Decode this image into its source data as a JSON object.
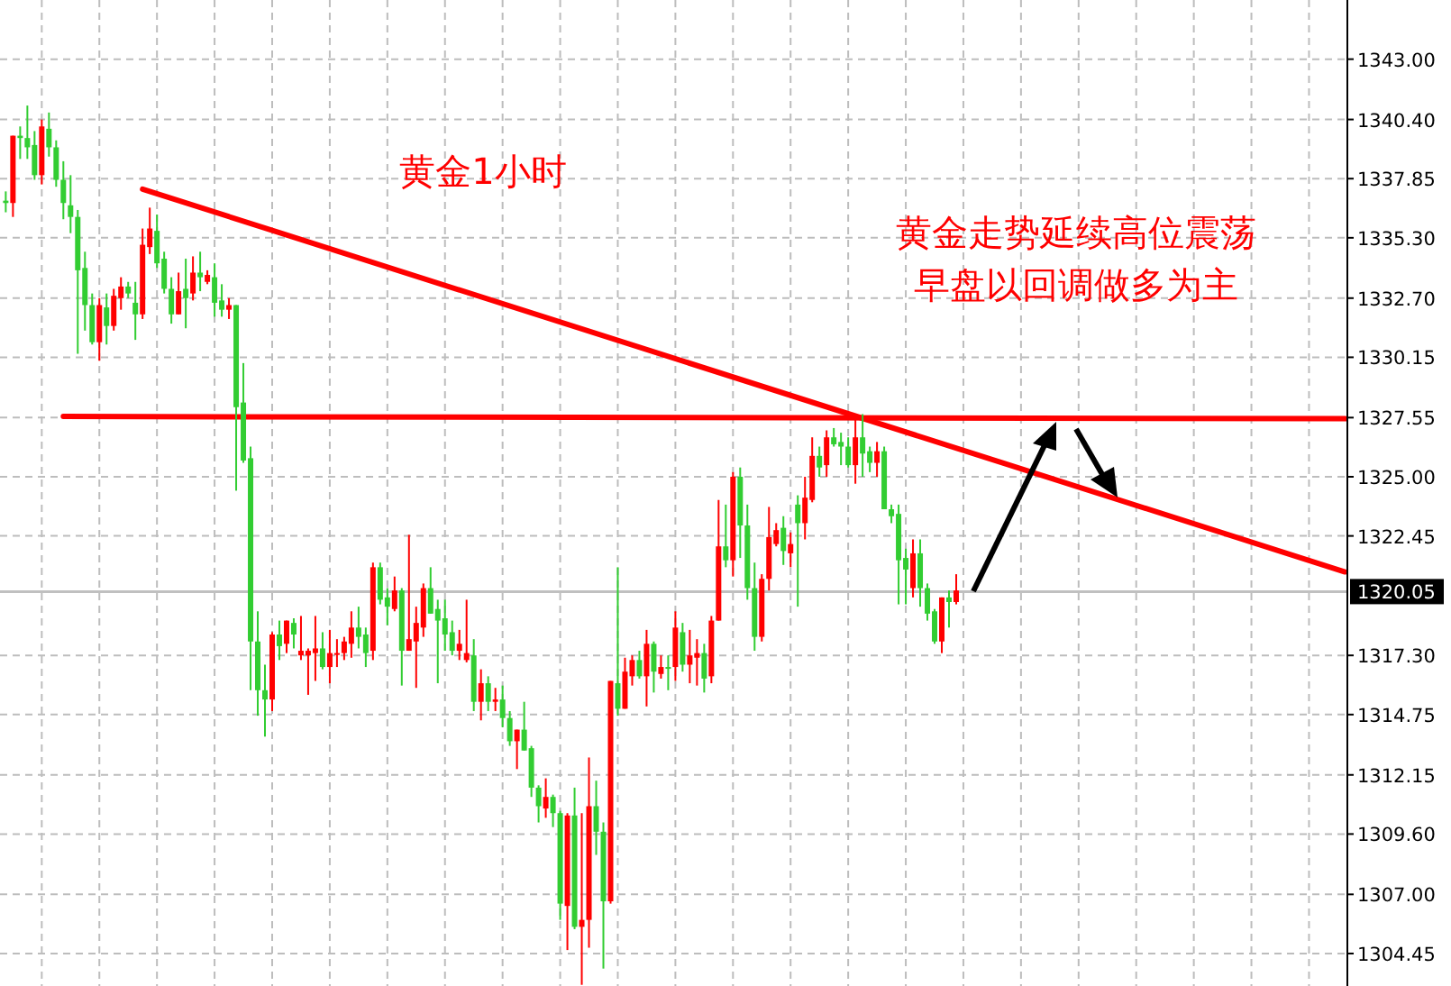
{
  "chart_data": {
    "type": "candlestick",
    "title": "黄金1小时",
    "annotations": [
      "黄金走势延续高位震荡",
      "早盘以回调做多为主"
    ],
    "categories": [
      null,
      null,
      null,
      null,
      null,
      null,
      null,
      null,
      null,
      null,
      null,
      null,
      null,
      null,
      null,
      null,
      null,
      null,
      null,
      null,
      null,
      null,
      null,
      null,
      null,
      null,
      null,
      null,
      null,
      null,
      null,
      null,
      null,
      null,
      null,
      null,
      null,
      null,
      null,
      null,
      null,
      null,
      null,
      null,
      null,
      null,
      null,
      null,
      null,
      null,
      null,
      null,
      null,
      null,
      null,
      null,
      null,
      null,
      null,
      null,
      null,
      null,
      null,
      null,
      null,
      null,
      null,
      null,
      null,
      null,
      null,
      null,
      null,
      null,
      null,
      null,
      null,
      null,
      null,
      null,
      null,
      null,
      null,
      null,
      null,
      null,
      null,
      null,
      null,
      null,
      null,
      null,
      null,
      null,
      null,
      null,
      null,
      null,
      null,
      null,
      null,
      null,
      null,
      null,
      null,
      null,
      null,
      null,
      null,
      null,
      null,
      null,
      null,
      null,
      null,
      null,
      null,
      null,
      null,
      null,
      null,
      null,
      null,
      null,
      null,
      null,
      null,
      null,
      null,
      null,
      null,
      null,
      null,
      null,
      null,
      null,
      null,
      null,
      null,
      null,
      null,
      null,
      null,
      null,
      null,
      null,
      null,
      null,
      null,
      null,
      null,
      null,
      null,
      null,
      null,
      null,
      null,
      null,
      null,
      null,
      null,
      null,
      null,
      null,
      null,
      null,
      null,
      null,
      null,
      null,
      null,
      null,
      null,
      null,
      null,
      null,
      null,
      null,
      null,
      null,
      null,
      null,
      null,
      null,
      null,
      null,
      null
    ],
    "colors": [
      "#32cd32",
      "#ff0000",
      "#32cd32",
      "#32cd32",
      "#32cd32",
      "#ff0000",
      "#32cd32",
      "#32cd32",
      "#32cd32",
      "#32cd32",
      "#32cd32",
      "#32cd32",
      "#32cd32",
      "#ff0000",
      "#32cd32",
      "#ff0000",
      "#ff0000",
      "#32cd32",
      "#32cd32",
      "#ff0000",
      "#ff0000",
      "#32cd32",
      "#32cd32",
      "#32cd32",
      "#ff0000",
      "#32cd32",
      "#ff0000",
      "#32cd32",
      "#ff0000",
      "#32cd32",
      "#32cd32",
      "#ff0000",
      "#32cd32",
      "#32cd32",
      "#32cd32",
      "#32cd32",
      "#32cd32",
      "#ff0000",
      "#32cd32",
      "#ff0000",
      "#32cd32",
      "#ff0000",
      "#ff0000",
      "#ff0000",
      "#32cd32",
      "#ff0000",
      "#ff0000",
      "#ff0000",
      "#ff0000",
      "#32cd32",
      "#32cd32",
      "#ff0000",
      "#32cd32",
      "#32cd32",
      "#ff0000",
      "#32cd32",
      "#ff0000",
      "#ff0000",
      "#ff0000",
      "#32cd32",
      "#32cd32",
      "#32cd32",
      "#32cd32",
      "#ff0000",
      "#ff0000",
      "#32cd32",
      "#ff0000",
      "#32cd32",
      "#ff0000",
      "#32cd32",
      "#32cd32",
      "#ff0000",
      "#32cd32",
      "#32cd32",
      "#32cd32",
      "#ff0000",
      "#32cd32",
      "#32cd32",
      "#ff0000",
      "#32cd32",
      "#ff0000",
      "#ff0000",
      "#32cd32",
      "#32cd32",
      "#ff0000",
      "#32cd32",
      "#ff0000",
      "#ff0000",
      "#32cd32",
      "#ff0000",
      "#32cd32",
      "#ff0000",
      "#32cd32",
      "#ff0000",
      "#32cd32",
      "#ff0000",
      "#ff0000",
      "#32cd32",
      "#ff0000",
      "#ff0000",
      "#32cd32",
      "#ff0000",
      "#32cd32",
      "#32cd32",
      "#32cd32",
      "#ff0000",
      "#ff0000",
      "#ff0000",
      "#32cd32",
      "#ff0000",
      "#32cd32",
      "#ff0000",
      "#ff0000",
      "#32cd32",
      "#ff0000",
      "#32cd32",
      "#32cd32",
      "#32cd32",
      "#ff0000",
      "#32cd32",
      "#32cd32",
      "#ff0000",
      "#32cd32",
      "#32cd32",
      "#32cd32",
      "#32cd32",
      "#ff0000",
      "#32cd32",
      "#32cd32",
      "#32cd32",
      "#ff0000",
      "#32cd32",
      "#ff0000",
      null,
      null,
      null,
      null,
      null,
      null,
      null,
      null,
      null,
      null,
      null,
      null,
      null,
      null,
      null,
      null,
      null,
      null,
      null,
      null,
      null,
      null,
      null,
      null,
      null,
      null,
      null,
      null,
      null,
      null,
      null,
      null,
      null,
      null,
      null,
      null,
      null,
      null,
      null,
      null,
      null,
      null,
      null,
      null,
      null,
      null,
      null,
      null,
      null,
      null,
      null,
      null,
      null,
      null
    ],
    "ohlc": [
      [
        1336.9,
        1337.3,
        1336.4,
        1336.8
      ],
      [
        1336.8,
        1339.7,
        1336.2,
        1339.7
      ],
      [
        1339.7,
        1340.1,
        1338.7,
        1339.6
      ],
      [
        1339.6,
        1341.0,
        1338.7,
        1339.2
      ],
      [
        1339.3,
        1339.9,
        1337.8,
        1338.0
      ],
      [
        1338.0,
        1340.4,
        1337.6,
        1340.1
      ],
      [
        1340.0,
        1340.7,
        1338.8,
        1339.2
      ],
      [
        1339.2,
        1339.5,
        1337.5,
        1337.8
      ],
      [
        1337.8,
        1338.6,
        1336.1,
        1336.8
      ],
      [
        1336.7,
        1338.0,
        1335.5,
        1336.2
      ],
      [
        1336.2,
        1336.5,
        1330.3,
        1333.9
      ],
      [
        1334.0,
        1334.7,
        1331.3,
        1332.4
      ],
      [
        1332.4,
        1332.9,
        1330.7,
        1330.8
      ],
      [
        1330.8,
        1332.7,
        1330.0,
        1332.4
      ],
      [
        1332.3,
        1332.9,
        1330.7,
        1331.5
      ],
      [
        1331.5,
        1333.1,
        1331.3,
        1332.8
      ],
      [
        1332.7,
        1333.6,
        1332.2,
        1333.2
      ],
      [
        1333.2,
        1333.4,
        1332.7,
        1332.9
      ],
      [
        1332.5,
        1333.4,
        1330.9,
        1332.0
      ],
      [
        1332.0,
        1335.7,
        1331.8,
        1335.0
      ],
      [
        1334.9,
        1336.6,
        1334.6,
        1335.7
      ],
      [
        1335.6,
        1336.3,
        1334.0,
        1334.2
      ],
      [
        1334.4,
        1334.7,
        1332.9,
        1333.1
      ],
      [
        1333.1,
        1333.6,
        1331.6,
        1332.0
      ],
      [
        1332.0,
        1333.8,
        1332.0,
        1333.0
      ],
      [
        1333.1,
        1334.4,
        1331.4,
        1332.7
      ],
      [
        1332.9,
        1334.5,
        1332.6,
        1333.8
      ],
      [
        1333.8,
        1334.7,
        1333.0,
        1333.6
      ],
      [
        1333.4,
        1333.9,
        1333.3,
        1333.7
      ],
      [
        1333.6,
        1334.2,
        1331.9,
        1332.5
      ],
      [
        1332.6,
        1333.3,
        1331.9,
        1332.2
      ],
      [
        1332.2,
        1332.7,
        1331.8,
        1332.4
      ],
      [
        1332.4,
        1332.4,
        1324.4,
        1328.0
      ],
      [
        1328.2,
        1329.9,
        1325.6,
        1325.7
      ],
      [
        1325.8,
        1326.3,
        1315.8,
        1317.9
      ],
      [
        1317.9,
        1319.2,
        1314.7,
        1315.8
      ],
      [
        1315.8,
        1316.9,
        1313.8,
        1315.4
      ],
      [
        1315.4,
        1318.3,
        1314.9,
        1318.2
      ],
      [
        1318.2,
        1318.8,
        1317.1,
        1317.7
      ],
      [
        1317.8,
        1318.8,
        1317.4,
        1318.8
      ],
      [
        1318.7,
        1318.9,
        1317.6,
        1318.2
      ],
      [
        1317.3,
        1319.0,
        1317.1,
        1317.5
      ],
      [
        1317.3,
        1317.6,
        1315.6,
        1317.5
      ],
      [
        1317.4,
        1319.0,
        1316.2,
        1317.6
      ],
      [
        1317.6,
        1318.3,
        1316.7,
        1316.8
      ],
      [
        1316.8,
        1318.4,
        1316.1,
        1317.4
      ],
      [
        1317.4,
        1318.0,
        1316.8,
        1317.4
      ],
      [
        1317.4,
        1318.1,
        1317.1,
        1317.9
      ],
      [
        1317.8,
        1319.2,
        1317.2,
        1318.5
      ],
      [
        1318.5,
        1319.4,
        1317.6,
        1318.1
      ],
      [
        1318.2,
        1318.5,
        1316.8,
        1317.4
      ],
      [
        1317.5,
        1321.3,
        1317.1,
        1321.1
      ],
      [
        1321.1,
        1321.3,
        1319.5,
        1319.7
      ],
      [
        1319.8,
        1320.2,
        1318.6,
        1319.4
      ],
      [
        1319.3,
        1320.7,
        1319.2,
        1320.1
      ],
      [
        1320.1,
        1320.2,
        1316.0,
        1317.5
      ],
      [
        1317.5,
        1322.5,
        1317.5,
        1318.0
      ],
      [
        1317.9,
        1319.4,
        1315.9,
        1318.7
      ],
      [
        1318.5,
        1320.4,
        1318.1,
        1320.2
      ],
      [
        1320.2,
        1321.1,
        1319.1,
        1319.1
      ],
      [
        1319.3,
        1319.7,
        1316.1,
        1318.8
      ],
      [
        1318.9,
        1319.7,
        1317.5,
        1318.2
      ],
      [
        1318.3,
        1318.8,
        1317.3,
        1317.5
      ],
      [
        1317.5,
        1318.4,
        1317.1,
        1317.8
      ],
      [
        1317.1,
        1319.7,
        1317.0,
        1317.4
      ],
      [
        1317.3,
        1318.0,
        1314.9,
        1315.3
      ],
      [
        1315.3,
        1316.7,
        1314.5,
        1316.1
      ],
      [
        1316.1,
        1316.4,
        1314.9,
        1315.3
      ],
      [
        1315.3,
        1315.9,
        1314.9,
        1315.4
      ],
      [
        1315.4,
        1316.0,
        1314.2,
        1314.6
      ],
      [
        1314.6,
        1314.9,
        1313.4,
        1313.6
      ],
      [
        1313.6,
        1314.1,
        1312.4,
        1314.1
      ],
      [
        1314.1,
        1315.3,
        1313.2,
        1313.2
      ],
      [
        1313.3,
        1313.4,
        1311.2,
        1311.6
      ],
      [
        1311.6,
        1311.7,
        1310.1,
        1310.8
      ],
      [
        1310.7,
        1312.0,
        1310.3,
        1311.2
      ],
      [
        1311.2,
        1311.3,
        1309.9,
        1310.5
      ],
      [
        1310.5,
        1310.6,
        1305.9,
        1306.6
      ],
      [
        1306.5,
        1310.5,
        1304.6,
        1310.4
      ],
      [
        1310.4,
        1311.6,
        1305.5,
        1305.6
      ],
      [
        1305.6,
        1310.5,
        1303.1,
        1305.9
      ],
      [
        1305.9,
        1312.9,
        1304.7,
        1310.8
      ],
      [
        1310.8,
        1311.9,
        1308.7,
        1309.7
      ],
      [
        1309.7,
        1310.1,
        1303.8,
        1306.7
      ],
      [
        1306.7,
        1316.2,
        1306.6,
        1316.2
      ],
      [
        1316.1,
        1321.1,
        1314.7,
        1315.0
      ],
      [
        1315.0,
        1317.2,
        1315.0,
        1316.6
      ],
      [
        1316.4,
        1317.3,
        1316.0,
        1317.1
      ],
      [
        1317.1,
        1317.5,
        1316.3,
        1316.4
      ],
      [
        1316.4,
        1318.4,
        1315.1,
        1317.8
      ],
      [
        1317.8,
        1317.9,
        1315.7,
        1316.6
      ],
      [
        1316.5,
        1317.3,
        1316.3,
        1316.8
      ],
      [
        1316.8,
        1317.3,
        1315.8,
        1316.8
      ],
      [
        1316.8,
        1319.2,
        1316.2,
        1318.5
      ],
      [
        1318.3,
        1318.7,
        1316.6,
        1316.9
      ],
      [
        1316.9,
        1318.4,
        1316.1,
        1317.3
      ],
      [
        1317.2,
        1318.0,
        1316.0,
        1317.4
      ],
      [
        1317.4,
        1317.8,
        1315.7,
        1316.3
      ],
      [
        1316.4,
        1319.0,
        1316.1,
        1318.8
      ],
      [
        1318.8,
        1324.0,
        1318.8,
        1322.0
      ],
      [
        1322.0,
        1323.8,
        1321.1,
        1321.4
      ],
      [
        1321.4,
        1325.2,
        1320.7,
        1325.0
      ],
      [
        1325.0,
        1325.4,
        1321.5,
        1322.9
      ],
      [
        1322.9,
        1323.8,
        1319.7,
        1320.2
      ],
      [
        1320.2,
        1321.3,
        1317.5,
        1318.1
      ],
      [
        1318.1,
        1320.8,
        1317.9,
        1320.6
      ],
      [
        1320.6,
        1323.7,
        1320.1,
        1322.4
      ],
      [
        1322.1,
        1323.0,
        1322.0,
        1322.7
      ],
      [
        1322.8,
        1323.3,
        1321.2,
        1321.8
      ],
      [
        1321.7,
        1322.6,
        1321.1,
        1322.1
      ],
      [
        1323.8,
        1324.2,
        1319.4,
        1323.0
      ],
      [
        1323.0,
        1325.0,
        1322.3,
        1324.1
      ],
      [
        1324.0,
        1326.7,
        1323.9,
        1325.9
      ],
      [
        1325.9,
        1326.3,
        1325.0,
        1325.4
      ],
      [
        1325.5,
        1327.0,
        1325.0,
        1326.7
      ],
      [
        1326.7,
        1327.1,
        1326.3,
        1326.4
      ],
      [
        1326.5,
        1326.9,
        1325.5,
        1326.3
      ],
      [
        1326.3,
        1326.7,
        1325.4,
        1325.5
      ],
      [
        1325.5,
        1327.6,
        1324.7,
        1326.7
      ],
      [
        1326.7,
        1327.7,
        1325.0,
        1326.0
      ],
      [
        1326.1,
        1326.3,
        1325.2,
        1325.6
      ],
      [
        1325.6,
        1326.5,
        1325.0,
        1326.1
      ],
      [
        1326.1,
        1326.3,
        1323.6,
        1323.6
      ],
      [
        1323.6,
        1323.8,
        1323.0,
        1323.3
      ],
      [
        1323.4,
        1323.8,
        1319.5,
        1321.4
      ],
      [
        1321.5,
        1321.9,
        1319.5,
        1321.0
      ],
      [
        1320.2,
        1322.3,
        1319.8,
        1321.7
      ],
      [
        1321.7,
        1322.3,
        1319.4,
        1320.2
      ],
      [
        1320.2,
        1320.4,
        1318.8,
        1319.1
      ],
      [
        1319.2,
        1319.3,
        1317.8,
        1317.9
      ],
      [
        1317.9,
        1319.8,
        1317.4,
        1319.8
      ],
      [
        1319.8,
        1320.1,
        1318.5,
        1319.6
      ],
      [
        1319.6,
        1320.8,
        1319.5,
        1320.1
      ],
      null,
      null,
      null,
      null,
      null,
      null,
      null,
      null,
      null,
      null,
      null,
      null,
      null,
      null,
      null,
      null,
      null,
      null,
      null,
      null,
      null,
      null,
      null,
      null,
      null,
      null,
      null,
      null,
      null,
      null,
      null,
      null,
      null,
      null,
      null,
      null,
      null,
      null,
      null,
      null,
      null,
      null,
      null,
      null,
      null,
      null,
      null,
      null,
      null,
      null,
      null,
      null,
      null,
      null
    ],
    "series": [
      {
        "type": "line",
        "color": "#ff0000",
        "values": [
          null,
          null,
          null,
          null,
          null,
          null,
          null,
          null,
          null,
          null,
          null,
          null,
          null,
          null,
          null,
          null,
          null,
          null,
          null,
          1337.4,
          null,
          null,
          null,
          null,
          null,
          null,
          null,
          null,
          null,
          null,
          null,
          null,
          null,
          null,
          null,
          null,
          null,
          null,
          null,
          null,
          null,
          null,
          null,
          null,
          null,
          null,
          null,
          null,
          null,
          null,
          null,
          null,
          null,
          null,
          null,
          null,
          null,
          null,
          null,
          null,
          null,
          null,
          null,
          null,
          null,
          null,
          null,
          null,
          null,
          null,
          null,
          null,
          null,
          null,
          null,
          null,
          null,
          null,
          null,
          null,
          null,
          null,
          null,
          null,
          null,
          null,
          null,
          null,
          null,
          null,
          null,
          null,
          null,
          null,
          null,
          null,
          null,
          null,
          null,
          null,
          null,
          null,
          null,
          null,
          null,
          null,
          null,
          null,
          null,
          null,
          null,
          null,
          null,
          null,
          null,
          null,
          null,
          null,
          null,
          null,
          null,
          null,
          null,
          null,
          null,
          null,
          null,
          null,
          null,
          null,
          null,
          null,
          null,
          null,
          null,
          null,
          null,
          null,
          null,
          null,
          null,
          null,
          null,
          null,
          null,
          null,
          null,
          null,
          null,
          null,
          null,
          null,
          null,
          null,
          null,
          null,
          null,
          null,
          null,
          null,
          null,
          null,
          null,
          null,
          null,
          null,
          null,
          null,
          null,
          null,
          null,
          null,
          null,
          null,
          null,
          null,
          null,
          null,
          null,
          null,
          null,
          null,
          null,
          null,
          null,
          null,
          1320.9
        ]
      },
      {
        "type": "line",
        "color": "#ff0000",
        "values": [
          null,
          null,
          null,
          null,
          null,
          null,
          null,
          null,
          1327.6,
          null,
          null,
          null,
          null,
          null,
          null,
          null,
          null,
          null,
          null,
          null,
          null,
          null,
          null,
          null,
          null,
          null,
          null,
          null,
          null,
          null,
          null,
          null,
          null,
          null,
          null,
          null,
          null,
          null,
          null,
          null,
          null,
          null,
          null,
          null,
          null,
          null,
          null,
          null,
          null,
          null,
          null,
          null,
          null,
          null,
          null,
          null,
          null,
          null,
          null,
          null,
          null,
          null,
          null,
          null,
          null,
          null,
          null,
          null,
          null,
          null,
          null,
          null,
          null,
          null,
          null,
          null,
          null,
          null,
          null,
          null,
          null,
          null,
          null,
          null,
          null,
          null,
          null,
          null,
          null,
          null,
          null,
          null,
          null,
          null,
          null,
          null,
          null,
          null,
          null,
          null,
          null,
          null,
          null,
          null,
          null,
          null,
          null,
          null,
          null,
          null,
          null,
          null,
          null,
          null,
          null,
          null,
          null,
          null,
          null,
          null,
          null,
          null,
          null,
          null,
          null,
          null,
          null,
          null,
          null,
          null,
          null,
          null,
          null,
          null,
          null,
          null,
          null,
          null,
          null,
          null,
          null,
          null,
          null,
          null,
          null,
          null,
          null,
          null,
          null,
          null,
          null,
          null,
          null,
          null,
          null,
          null,
          null,
          null,
          null,
          null,
          null,
          null,
          null,
          null,
          null,
          null,
          null,
          null,
          null,
          null,
          null,
          null,
          null,
          null,
          null,
          null,
          null,
          null,
          null,
          null,
          null,
          null,
          null,
          null,
          null,
          null,
          1327.5
        ]
      }
    ],
    "ref_lines": [
      {
        "axis": "y",
        "value": 1320.05,
        "label": "1320.05",
        "color": "#c0c0c0"
      }
    ],
    "ylim": [
      1303.05,
      1345.55
    ],
    "yticks": [
      {
        "value": 1304.45,
        "label": "1304.45"
      },
      {
        "value": 1307,
        "label": "1307.00"
      },
      {
        "value": 1309.6,
        "label": "1309.60"
      },
      {
        "value": 1312.15,
        "label": "1312.15"
      },
      {
        "value": 1314.75,
        "label": "1314.75"
      },
      {
        "value": 1317.3,
        "label": "1317.30"
      },
      {
        "value": 1322.45,
        "label": "1322.45"
      },
      {
        "value": 1325,
        "label": "1325.00"
      },
      {
        "value": 1327.55,
        "label": "1327.55"
      },
      {
        "value": 1330.15,
        "label": "1330.15"
      },
      {
        "value": 1332.7,
        "label": "1332.70"
      },
      {
        "value": 1335.3,
        "label": "1335.30"
      },
      {
        "value": 1337.85,
        "label": "1337.85"
      },
      {
        "value": 1340.4,
        "label": "1340.40"
      },
      {
        "value": 1343,
        "label": "1343.00"
      }
    ],
    "grid": true
  }
}
